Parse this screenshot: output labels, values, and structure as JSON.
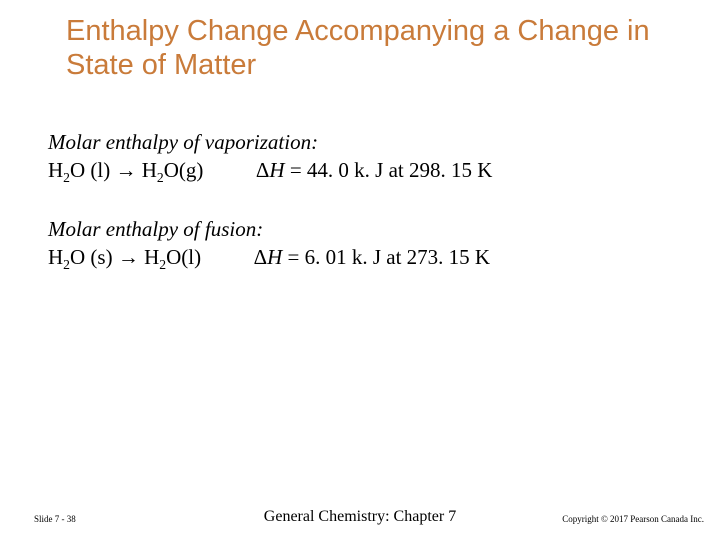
{
  "title": "Enthalpy Change Accompanying a Change in State of Matter",
  "sections": [
    {
      "heading": "Molar enthalpy of vaporization:",
      "reactant": "H₂O (l)",
      "product": "H₂O(g)",
      "dh_value": "= 44. 0 k. J at 298. 15 K"
    },
    {
      "heading": "Molar enthalpy of fusion:",
      "reactant": "H₂O (s)",
      "product": "H₂O(l)",
      "dh_value": "= 6. 01 k. J at 273. 15  K"
    }
  ],
  "footer": {
    "left": "Slide 7 - 38",
    "center": "General Chemistry: Chapter 7",
    "right": "Copyright © 2017 Pearson Canada Inc."
  },
  "colors": {
    "title": "#c97b3a",
    "text": "#000000",
    "background": "#ffffff"
  },
  "typography": {
    "title_font": "Arial",
    "title_size_pt": 22,
    "body_font": "Times New Roman",
    "body_size_pt": 16,
    "footer_small_pt": 7,
    "footer_center_pt": 12
  }
}
